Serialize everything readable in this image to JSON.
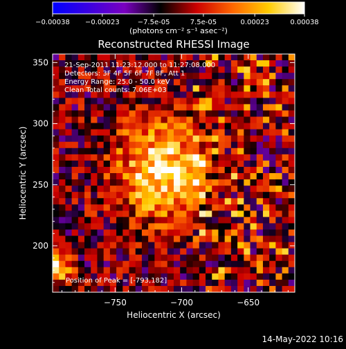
{
  "colorbar": {
    "stops": [
      "#0000ff",
      "#3a00e0",
      "#7a00c0",
      "#000000",
      "#cc0000",
      "#ff6600",
      "#ffcc00",
      "#ffffff"
    ],
    "tick_labels": [
      "-0.00038",
      "-0.00023",
      "-7.5e-05",
      "7.5e-05",
      "0.00023",
      "0.00038"
    ],
    "unit_label": "(photons cm⁻² s⁻¹ asec⁻²)"
  },
  "image_info": {
    "time_range": "21-Sep-2011 11:23:12.000 to 11:27:08.000",
    "detectors": "Detectors: 3F 4F 5F 6F 7F 8F, Att 1",
    "energy_range": "Energy Range: 25.0 - 50.0 keV",
    "method_counts": "Clean    Total counts: 7.06E+03",
    "peak_position": "Position of Peak = [-793,182]"
  },
  "footer": {
    "timestamp": "14-May-2022 10:16"
  },
  "chart_data": {
    "type": "heatmap",
    "title": "Reconstructed RHESSI Image",
    "xlabel": "Heliocentric X (arcsec)",
    "ylabel": "Heliocentric Y (arcsec)",
    "xlim": [
      -797,
      -615
    ],
    "ylim": [
      162,
      357
    ],
    "x_ticks": [
      -750,
      -700,
      -650
    ],
    "y_ticks": [
      200,
      250,
      300,
      350
    ],
    "x_tick_labels": [
      "−750",
      "−700",
      "−650"
    ],
    "y_tick_labels": [
      "200",
      "250",
      "300",
      "350"
    ],
    "grid": false,
    "colormap": "blue-purple-black-red-yellow-white diverging",
    "value_range": [
      -0.00038,
      0.00038
    ],
    "peak": {
      "x": -793,
      "y": 182
    },
    "grid_size": 38,
    "values_description_only_visual": true,
    "intensity_field": [
      [
        -0.0001,
        -0.00012,
        -5e-05,
        -0.00015,
        5e-05,
        -0.00018,
        -8e-05,
        -0.00012,
        -5e-05,
        0.0001,
        -0.00012,
        8e-05,
        -6e-05,
        -0.0001,
        -0.00015,
        0.00012,
        -8e-05,
        6e-05,
        -0.00012,
        -0.0001,
        0.0001,
        -5e-05,
        -0.00012,
        0.00012,
        -8e-05,
        -0.00015,
        6e-05,
        -0.0001,
        -0.00012,
        8e-05,
        -6e-05,
        -0.0001,
        0.0001,
        -0.00012,
        -8e-05,
        0.00015,
        -6e-05,
        0.0001
      ]
    ]
  }
}
